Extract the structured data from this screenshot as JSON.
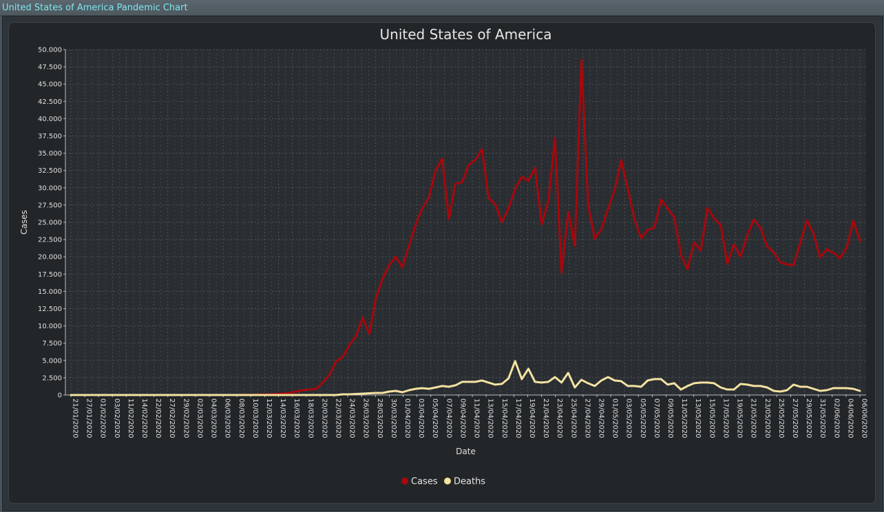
{
  "window": {
    "title": "United States of America Pandemic Chart"
  },
  "colors": {
    "cases": "#a8070c",
    "deaths": "#f4e3a1",
    "plot_background": "#2a2e32",
    "grid": "#5a6066"
  },
  "chart_data": {
    "type": "line",
    "title": "United States of America",
    "xlabel": "Date",
    "ylabel": "Cases",
    "ylim": [
      0,
      50000
    ],
    "grid": true,
    "legend_position": "bottom",
    "x_ticks": [
      "21/01/2020",
      "27/01/2020",
      "01/02/2020",
      "03/02/2020",
      "11/02/2020",
      "14/02/2020",
      "22/02/2020",
      "27/02/2020",
      "29/02/2020",
      "02/03/2020",
      "04/03/2020",
      "06/03/2020",
      "08/03/2020",
      "10/03/2020",
      "12/03/2020",
      "14/03/2020",
      "16/03/2020",
      "18/03/2020",
      "20/03/2020",
      "22/03/2020",
      "24/03/2020",
      "26/03/2020",
      "28/03/2020",
      "30/03/2020",
      "01/04/2020",
      "03/04/2020",
      "05/04/2020",
      "07/04/2020",
      "09/04/2020",
      "11/04/2020",
      "13/04/2020",
      "15/04/2020",
      "17/04/2020",
      "19/04/2020",
      "21/04/2020",
      "23/04/2020",
      "25/04/2020",
      "27/04/2020",
      "29/04/2020",
      "01/05/2020",
      "03/05/2020",
      "05/05/2020",
      "07/05/2020",
      "09/05/2020",
      "11/05/2020",
      "13/05/2020",
      "15/05/2020",
      "17/05/2020",
      "19/05/2020",
      "21/05/2020",
      "23/05/2020",
      "25/05/2020",
      "27/05/2020",
      "29/05/2020",
      "31/05/2020",
      "02/06/2020",
      "04/06/2020",
      "06/06/2020"
    ],
    "y_ticks": [
      "0",
      "2.500",
      "5.000",
      "7.500",
      "10.000",
      "12.500",
      "15.000",
      "17.500",
      "20.000",
      "22.500",
      "25.000",
      "27.500",
      "30.000",
      "32.500",
      "35.000",
      "37.500",
      "40.000",
      "42.500",
      "45.000",
      "47.500",
      "50.000"
    ],
    "series": [
      {
        "name": "Cases",
        "values": [
          0,
          0,
          0,
          0,
          0,
          0,
          0,
          0,
          0,
          0,
          0,
          0,
          0,
          0,
          0,
          0,
          0,
          0,
          0,
          0,
          0,
          0,
          0,
          0,
          0,
          0,
          20,
          30,
          50,
          70,
          100,
          150,
          200,
          300,
          500,
          700,
          800,
          900,
          1800,
          2900,
          4900,
          5500,
          7200,
          8500,
          11200,
          8800,
          14000,
          16800,
          18800,
          20000,
          18500,
          21600,
          24700,
          27000,
          28600,
          32500,
          34200,
          25500,
          30600,
          30800,
          33300,
          34000,
          35600,
          28500,
          27600,
          25000,
          27000,
          29800,
          31600,
          31000,
          32900,
          24700,
          28000,
          37200,
          17700,
          26500,
          21600,
          48500,
          27600,
          22600,
          24000,
          26900,
          29700,
          34000,
          29800,
          25400,
          22700,
          23900,
          24200,
          28300,
          27000,
          25700,
          20300,
          18200,
          22100,
          20900,
          27100,
          25600,
          24600,
          19000,
          21800,
          20000,
          23100,
          25400,
          24200,
          21500,
          20700,
          19200,
          18900,
          18800,
          22000,
          25300,
          23300,
          19900,
          21100,
          20600,
          19800,
          21300,
          25200,
          22300
        ]
      },
      {
        "name": "Deaths",
        "values": [
          0,
          0,
          0,
          0,
          0,
          0,
          0,
          0,
          0,
          0,
          0,
          0,
          0,
          0,
          0,
          0,
          0,
          0,
          0,
          0,
          0,
          0,
          0,
          0,
          0,
          0,
          0,
          0,
          0,
          0,
          0,
          0,
          0,
          0,
          0,
          0,
          0,
          0,
          0,
          0,
          0,
          100,
          100,
          150,
          200,
          250,
          300,
          300,
          500,
          600,
          400,
          700,
          900,
          1000,
          900,
          1100,
          1300,
          1200,
          1400,
          1900,
          1900,
          1900,
          2100,
          1800,
          1500,
          1600,
          2400,
          4900,
          2300,
          3800,
          1900,
          1800,
          1900,
          2600,
          1800,
          3200,
          1100,
          2200,
          1700,
          1300,
          2100,
          2600,
          2100,
          2000,
          1300,
          1300,
          1200,
          2100,
          2300,
          2300,
          1500,
          1700,
          800,
          1300,
          1700,
          1800,
          1800,
          1700,
          1100,
          800,
          800,
          1600,
          1500,
          1300,
          1300,
          1100,
          600,
          500,
          700,
          1500,
          1200,
          1200,
          900,
          600,
          700,
          1000,
          1000,
          1000,
          900,
          600
        ]
      }
    ]
  }
}
